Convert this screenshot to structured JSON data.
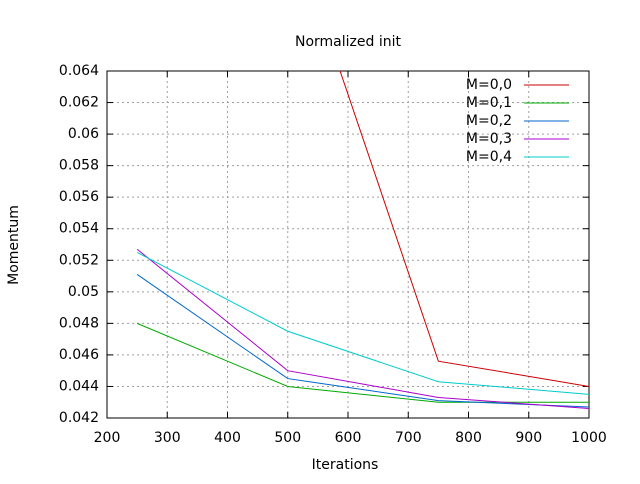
{
  "chart_data": {
    "type": "line",
    "title": "Normalized init",
    "xlabel": "Iterations",
    "ylabel": "Momentum",
    "x": [
      250,
      500,
      750,
      1000
    ],
    "series": [
      {
        "name": "M=0,0",
        "color": "#cc0000",
        "values": [
          null,
          0.0738,
          0.0456,
          0.044
        ]
      },
      {
        "name": "M=0,1",
        "color": "#00aa00",
        "values": [
          0.048,
          0.044,
          0.043,
          0.043
        ]
      },
      {
        "name": "M=0,2",
        "color": "#0066cc",
        "values": [
          0.0511,
          0.0445,
          0.0431,
          0.0427
        ]
      },
      {
        "name": "M=0,3",
        "color": "#aa00cc",
        "values": [
          0.0527,
          0.045,
          0.0433,
          0.0426
        ]
      },
      {
        "name": "M=0,4",
        "color": "#00cccc",
        "values": [
          0.0525,
          0.0475,
          0.0443,
          0.0435
        ]
      }
    ],
    "xlim": [
      200,
      1000
    ],
    "xticks": [
      200,
      300,
      400,
      500,
      600,
      700,
      800,
      900,
      1000
    ],
    "ylim": [
      0.042,
      0.064
    ],
    "yticks": [
      0.042,
      0.044,
      0.046,
      0.048,
      0.05,
      0.052,
      0.054,
      0.056,
      0.058,
      0.06,
      0.062,
      0.064
    ],
    "grid": true,
    "legend": "top-right"
  }
}
